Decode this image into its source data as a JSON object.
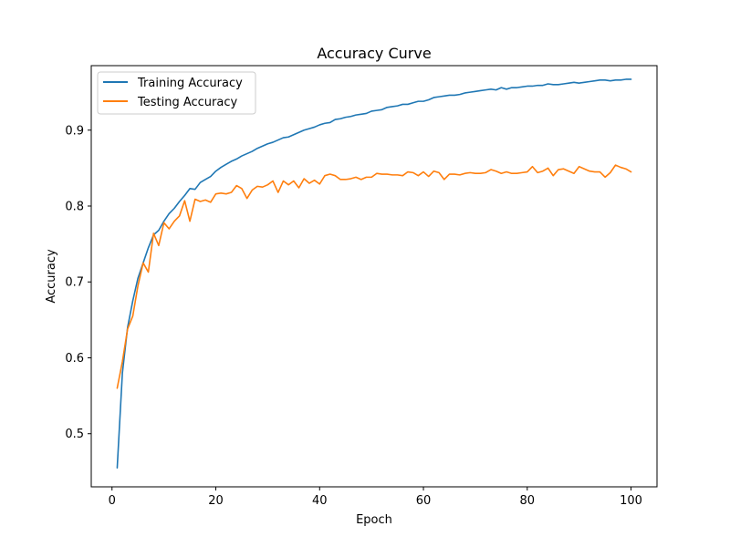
{
  "chart_data": {
    "type": "line",
    "title": "Accuracy Curve",
    "xlabel": "Epoch",
    "ylabel": "Accuracy",
    "xlim": [
      -4,
      105
    ],
    "ylim": [
      0.43,
      0.985
    ],
    "xticks": [
      0,
      20,
      40,
      60,
      80,
      100
    ],
    "yticks": [
      0.5,
      0.6,
      0.7,
      0.8,
      0.9
    ],
    "grid": false,
    "legend_position": "top-left",
    "x": [
      1,
      2,
      3,
      4,
      5,
      6,
      7,
      8,
      9,
      10,
      11,
      12,
      13,
      14,
      15,
      16,
      17,
      18,
      19,
      20,
      21,
      22,
      23,
      24,
      25,
      26,
      27,
      28,
      29,
      30,
      31,
      32,
      33,
      34,
      35,
      36,
      37,
      38,
      39,
      40,
      41,
      42,
      43,
      44,
      45,
      46,
      47,
      48,
      49,
      50,
      51,
      52,
      53,
      54,
      55,
      56,
      57,
      58,
      59,
      60,
      61,
      62,
      63,
      64,
      65,
      66,
      67,
      68,
      69,
      70,
      71,
      72,
      73,
      74,
      75,
      76,
      77,
      78,
      79,
      80,
      81,
      82,
      83,
      84,
      85,
      86,
      87,
      88,
      89,
      90,
      91,
      92,
      93,
      94,
      95,
      96,
      97,
      98,
      99,
      100
    ],
    "series": [
      {
        "name": "Training Accuracy",
        "color": "#1f77b4",
        "values": [
          0.455,
          0.58,
          0.64,
          0.675,
          0.705,
          0.725,
          0.745,
          0.762,
          0.768,
          0.78,
          0.79,
          0.797,
          0.806,
          0.814,
          0.823,
          0.822,
          0.831,
          0.835,
          0.839,
          0.846,
          0.851,
          0.855,
          0.859,
          0.862,
          0.866,
          0.869,
          0.872,
          0.876,
          0.879,
          0.882,
          0.884,
          0.887,
          0.89,
          0.891,
          0.894,
          0.897,
          0.9,
          0.902,
          0.904,
          0.907,
          0.909,
          0.91,
          0.914,
          0.915,
          0.917,
          0.918,
          0.92,
          0.921,
          0.922,
          0.925,
          0.926,
          0.927,
          0.93,
          0.931,
          0.932,
          0.934,
          0.934,
          0.936,
          0.938,
          0.938,
          0.94,
          0.943,
          0.944,
          0.945,
          0.946,
          0.946,
          0.947,
          0.949,
          0.95,
          0.951,
          0.952,
          0.953,
          0.954,
          0.953,
          0.956,
          0.954,
          0.956,
          0.956,
          0.957,
          0.958,
          0.958,
          0.959,
          0.959,
          0.961,
          0.96,
          0.96,
          0.961,
          0.962,
          0.963,
          0.962,
          0.963,
          0.964,
          0.965,
          0.966,
          0.966,
          0.965,
          0.966,
          0.966,
          0.967,
          0.967
        ]
      },
      {
        "name": "Testing Accuracy",
        "color": "#ff7f0e",
        "values": [
          0.56,
          0.595,
          0.638,
          0.655,
          0.695,
          0.725,
          0.713,
          0.764,
          0.748,
          0.778,
          0.77,
          0.78,
          0.787,
          0.807,
          0.78,
          0.809,
          0.806,
          0.808,
          0.805,
          0.816,
          0.817,
          0.816,
          0.818,
          0.827,
          0.823,
          0.81,
          0.821,
          0.826,
          0.825,
          0.828,
          0.833,
          0.818,
          0.833,
          0.828,
          0.833,
          0.824,
          0.836,
          0.83,
          0.834,
          0.829,
          0.84,
          0.842,
          0.84,
          0.835,
          0.835,
          0.836,
          0.838,
          0.835,
          0.838,
          0.838,
          0.843,
          0.842,
          0.842,
          0.841,
          0.841,
          0.84,
          0.845,
          0.844,
          0.84,
          0.845,
          0.839,
          0.846,
          0.844,
          0.835,
          0.842,
          0.842,
          0.841,
          0.843,
          0.844,
          0.843,
          0.843,
          0.844,
          0.848,
          0.846,
          0.843,
          0.845,
          0.843,
          0.843,
          0.844,
          0.845,
          0.852,
          0.844,
          0.846,
          0.85,
          0.84,
          0.848,
          0.849,
          0.846,
          0.843,
          0.852,
          0.849,
          0.846,
          0.845,
          0.845,
          0.838,
          0.844,
          0.854,
          0.851,
          0.849,
          0.845
        ]
      }
    ]
  }
}
